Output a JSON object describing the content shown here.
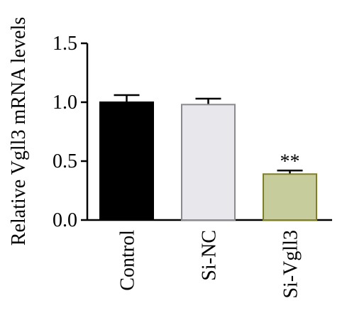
{
  "chart_data": {
    "type": "bar",
    "title": "",
    "xlabel": "",
    "ylabel": "Relative Vgll3 mRNA levels",
    "ylim": [
      0,
      1.5
    ],
    "y_ticks": [
      0.0,
      0.5,
      1.0,
      1.5
    ],
    "y_tick_labels": [
      "0.0",
      "0.5",
      "1.0",
      "1.5"
    ],
    "categories": [
      "Control",
      "Si-NC",
      "Si-Vgll3"
    ],
    "values": [
      1.0,
      0.98,
      0.39
    ],
    "errors": [
      0.06,
      0.05,
      0.03
    ],
    "bar_fill_colors": [
      "#000000",
      "#e8e8ec",
      "#c6cc9b"
    ],
    "bar_stroke_colors": [
      "#000000",
      "#8a8a90",
      "#7f7f2a"
    ],
    "annotations": [
      "",
      "",
      "**"
    ],
    "grid": false,
    "legend": "none"
  }
}
